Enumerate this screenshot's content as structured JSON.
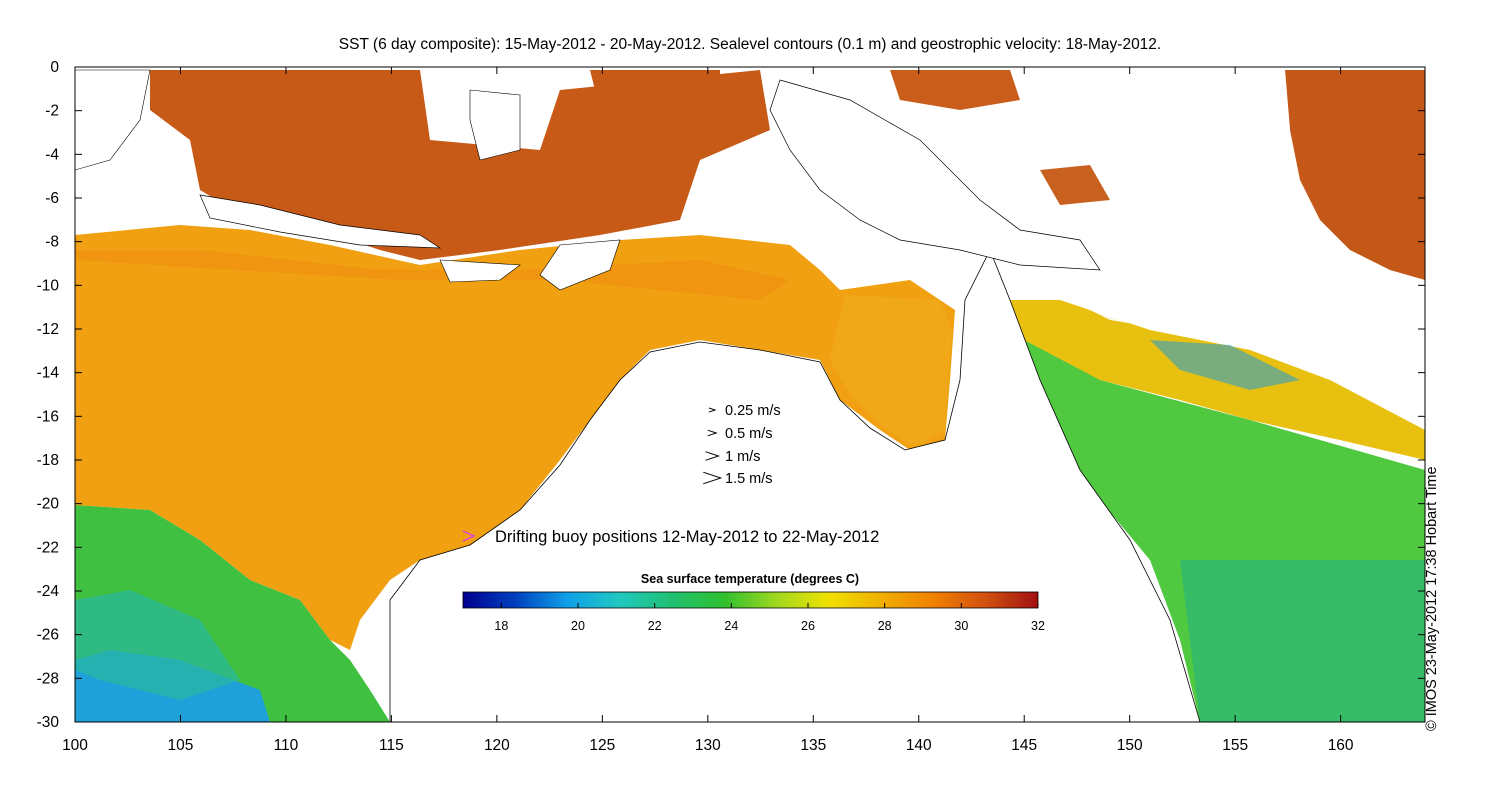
{
  "title": "SST (6 day composite): 15-May-2012 - 20-May-2012. Sealevel contours (0.1 m) and geostrophic velocity: 18-May-2012.",
  "credit": "© IMOS 23-May-2012 17:38 Hobart Time",
  "axes": {
    "x_ticks": [
      "100",
      "105",
      "110",
      "115",
      "120",
      "125",
      "130",
      "135",
      "140",
      "145",
      "150",
      "155",
      "160"
    ],
    "y_ticks": [
      "0",
      "-2",
      "-4",
      "-6",
      "-8",
      "-10",
      "-12",
      "-14",
      "-16",
      "-18",
      "-20",
      "-22",
      "-24",
      "-26",
      "-28",
      "-30"
    ],
    "xlim": [
      100,
      164
    ],
    "ylim": [
      -30,
      0
    ]
  },
  "velocity_legend": [
    {
      "label": "0.25 m/s",
      "speed": 0.25
    },
    {
      "label": "0.5 m/s",
      "speed": 0.5
    },
    {
      "label": "1 m/s",
      "speed": 1
    },
    {
      "label": "1.5 m/s",
      "speed": 1.5
    }
  ],
  "buoy_legend": {
    "label": "Drifting buoy positions 12-May-2012 to 22-May-2012",
    "color": "#e040e0"
  },
  "colorbar": {
    "title": "Sea surface temperature (degrees C)",
    "ticks": [
      "18",
      "20",
      "22",
      "24",
      "26",
      "28",
      "30",
      "32"
    ],
    "range": [
      17,
      32
    ],
    "colors": [
      "#00008f",
      "#0040c0",
      "#10a0e8",
      "#20c8c0",
      "#20c070",
      "#30c030",
      "#a0d820",
      "#f0e000",
      "#f0b000",
      "#f08000",
      "#d05010",
      "#a01010"
    ]
  }
}
